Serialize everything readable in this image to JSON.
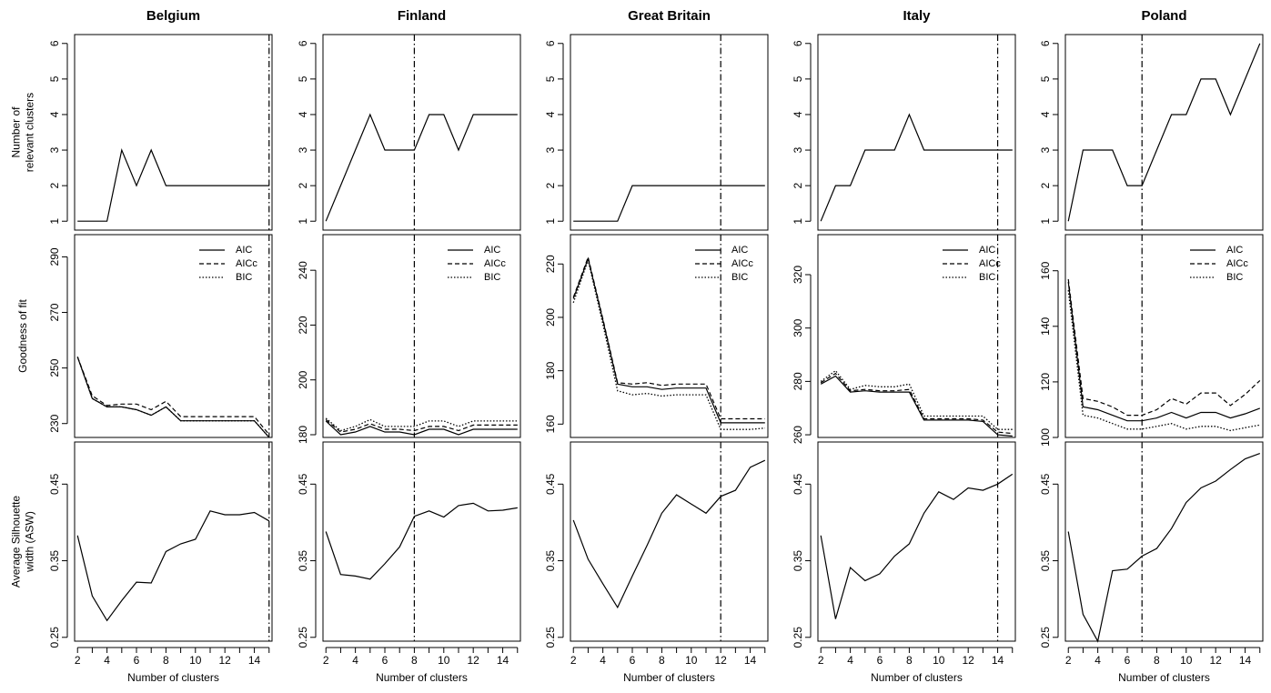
{
  "chart_data": {
    "type": "line",
    "x": [
      2,
      3,
      4,
      5,
      6,
      7,
      8,
      9,
      10,
      11,
      12,
      13,
      14,
      15
    ],
    "x_tick_labels": [
      "2",
      "4",
      "6",
      "8",
      "10",
      "12",
      "14"
    ],
    "xlabel": "Number of clusters",
    "row_labels": {
      "relevant": "Number of\nrelevant clusters",
      "fit": "Goodness of fit",
      "asw": "Average Silhouette\nwidth (ASW)"
    },
    "legend": [
      "AIC",
      "AICc",
      "BIC"
    ],
    "legend_placement": "top-right",
    "countries": [
      {
        "name": "Belgium",
        "selected_k": 15,
        "relevant": [
          1,
          1,
          1,
          3,
          2,
          3,
          2,
          2,
          2,
          2,
          2,
          2,
          2,
          2
        ],
        "fit_ylim": [
          225,
          298
        ],
        "fit_ticks": [
          230,
          250,
          270,
          290
        ],
        "fit_tick_labels": [
          "230",
          "250",
          "270",
          "290"
        ],
        "AIC": [
          254,
          239,
          236,
          236,
          235,
          233,
          236,
          231,
          231,
          231,
          231,
          231,
          231,
          225
        ],
        "AICc": [
          254,
          240,
          236.5,
          237,
          237,
          235,
          238,
          232.5,
          232.5,
          232.5,
          232.5,
          232.5,
          232.5,
          226
        ],
        "BIC": [
          254,
          239,
          236,
          236,
          235,
          233,
          236,
          231,
          231,
          231,
          231,
          231,
          231,
          225
        ],
        "asw": [
          0.383,
          0.304,
          0.272,
          0.298,
          0.322,
          0.321,
          0.362,
          0.372,
          0.378,
          0.415,
          0.41,
          0.41,
          0.413,
          0.402
        ]
      },
      {
        "name": "Finland",
        "selected_k": 8,
        "relevant": [
          1,
          2,
          3,
          4,
          3,
          3,
          3,
          4,
          4,
          3,
          4,
          4,
          4,
          4
        ],
        "fit_ylim": [
          179,
          253
        ],
        "fit_ticks": [
          180,
          200,
          220,
          240
        ],
        "fit_tick_labels": [
          "180",
          "200",
          "220",
          "240"
        ],
        "AIC": [
          185,
          180,
          181,
          183,
          181,
          181,
          180,
          182,
          182,
          180,
          182,
          182,
          182,
          182
        ],
        "AICc": [
          185.5,
          181,
          182,
          184,
          182,
          182,
          181.5,
          183,
          183,
          181.5,
          183.5,
          183.5,
          183.5,
          183.5
        ],
        "BIC": [
          186,
          181.5,
          183,
          185.5,
          183,
          183,
          183,
          185,
          185,
          183,
          185,
          185,
          185,
          185
        ],
        "asw": [
          0.388,
          0.332,
          0.33,
          0.326,
          0.346,
          0.368,
          0.408,
          0.415,
          0.407,
          0.422,
          0.425,
          0.415,
          0.416,
          0.419
        ]
      },
      {
        "name": "Great Britain",
        "selected_k": 12,
        "relevant": [
          1,
          1,
          1,
          1,
          2,
          2,
          2,
          2,
          2,
          2,
          2,
          2,
          2,
          2
        ],
        "fit_ylim": [
          155,
          231
        ],
        "fit_ticks": [
          160,
          180,
          200,
          220
        ],
        "fit_tick_labels": [
          "160",
          "180",
          "200",
          "220"
        ],
        "AIC": [
          207,
          222,
          199,
          175,
          174,
          174,
          173,
          173.5,
          173.5,
          173.5,
          160.5,
          160.5,
          160.5,
          160.5
        ],
        "AICc": [
          207.5,
          222.5,
          199.5,
          175.5,
          175,
          175.5,
          174.5,
          175,
          175,
          175,
          162,
          162,
          162,
          162
        ],
        "BIC": [
          205.5,
          221.5,
          197.5,
          172.5,
          171,
          171.5,
          170.5,
          171,
          171,
          171,
          158,
          158,
          158,
          158.5
        ],
        "asw": [
          0.403,
          0.352,
          0.32,
          0.289,
          0.33,
          0.37,
          0.412,
          0.436,
          0.424,
          0.412,
          0.434,
          0.442,
          0.472,
          0.481
        ]
      },
      {
        "name": "Italy",
        "selected_k": 14,
        "relevant": [
          1,
          2,
          2,
          3,
          3,
          3,
          4,
          3,
          3,
          3,
          3,
          3,
          3,
          3
        ],
        "fit_ylim": [
          259,
          335
        ],
        "fit_ticks": [
          260,
          280,
          300,
          320
        ],
        "fit_tick_labels": [
          "260",
          "280",
          "300",
          "320"
        ],
        "AIC": [
          279,
          282,
          276,
          276.5,
          276,
          276,
          276,
          265.5,
          265.5,
          265.5,
          265.5,
          265,
          260,
          259.5
        ],
        "AICc": [
          279.5,
          283,
          276.5,
          277,
          276.5,
          276.5,
          277,
          266,
          266,
          266,
          266,
          265.5,
          261,
          260.5
        ],
        "BIC": [
          280,
          284,
          277,
          278.5,
          278,
          278,
          279,
          267,
          267,
          267,
          267,
          267,
          262,
          262
        ],
        "asw": [
          0.383,
          0.274,
          0.341,
          0.324,
          0.333,
          0.356,
          0.372,
          0.412,
          0.44,
          0.43,
          0.445,
          0.442,
          0.45,
          0.463
        ]
      },
      {
        "name": "Poland",
        "selected_k": 7,
        "relevant": [
          1,
          3,
          3,
          3,
          2,
          2,
          3,
          4,
          4,
          5,
          5,
          4,
          5,
          6
        ],
        "fit_ylim": [
          100,
          173
        ],
        "fit_ticks": [
          100,
          120,
          140,
          160
        ],
        "fit_tick_labels": [
          "100",
          "120",
          "140",
          "160"
        ],
        "AIC": [
          156,
          111,
          110,
          108,
          106,
          106,
          107,
          109,
          107,
          109,
          109,
          107,
          108.5,
          110.5
        ],
        "AICc": [
          157,
          114,
          113,
          111,
          108,
          108,
          110,
          114,
          112,
          116,
          116,
          111.5,
          115.5,
          120.5
        ],
        "BIC": [
          153,
          108,
          107,
          105,
          103,
          103,
          104,
          105,
          103,
          104,
          104,
          102.5,
          103.5,
          104.5
        ],
        "asw": [
          0.388,
          0.28,
          0.245,
          0.337,
          0.339,
          0.356,
          0.366,
          0.392,
          0.426,
          0.445,
          0.454,
          0.469,
          0.483,
          0.49
        ]
      }
    ],
    "relevant_ylim": [
      0.75,
      6.25
    ],
    "relevant_ticks": [
      1,
      2,
      3,
      4,
      5,
      6
    ],
    "relevant_tick_labels": [
      "1",
      "2",
      "3",
      "4",
      "5",
      "6"
    ],
    "asw_ylim": [
      0.245,
      0.505
    ],
    "asw_ticks": [
      0.25,
      0.35,
      0.45
    ],
    "asw_tick_labels": [
      "0.25",
      "0.35",
      "0.45"
    ],
    "xlim": [
      1.8,
      15.2
    ],
    "grid": false,
    "colors": {
      "line": "#000000",
      "frame": "#000000",
      "background": "#ffffff"
    }
  }
}
